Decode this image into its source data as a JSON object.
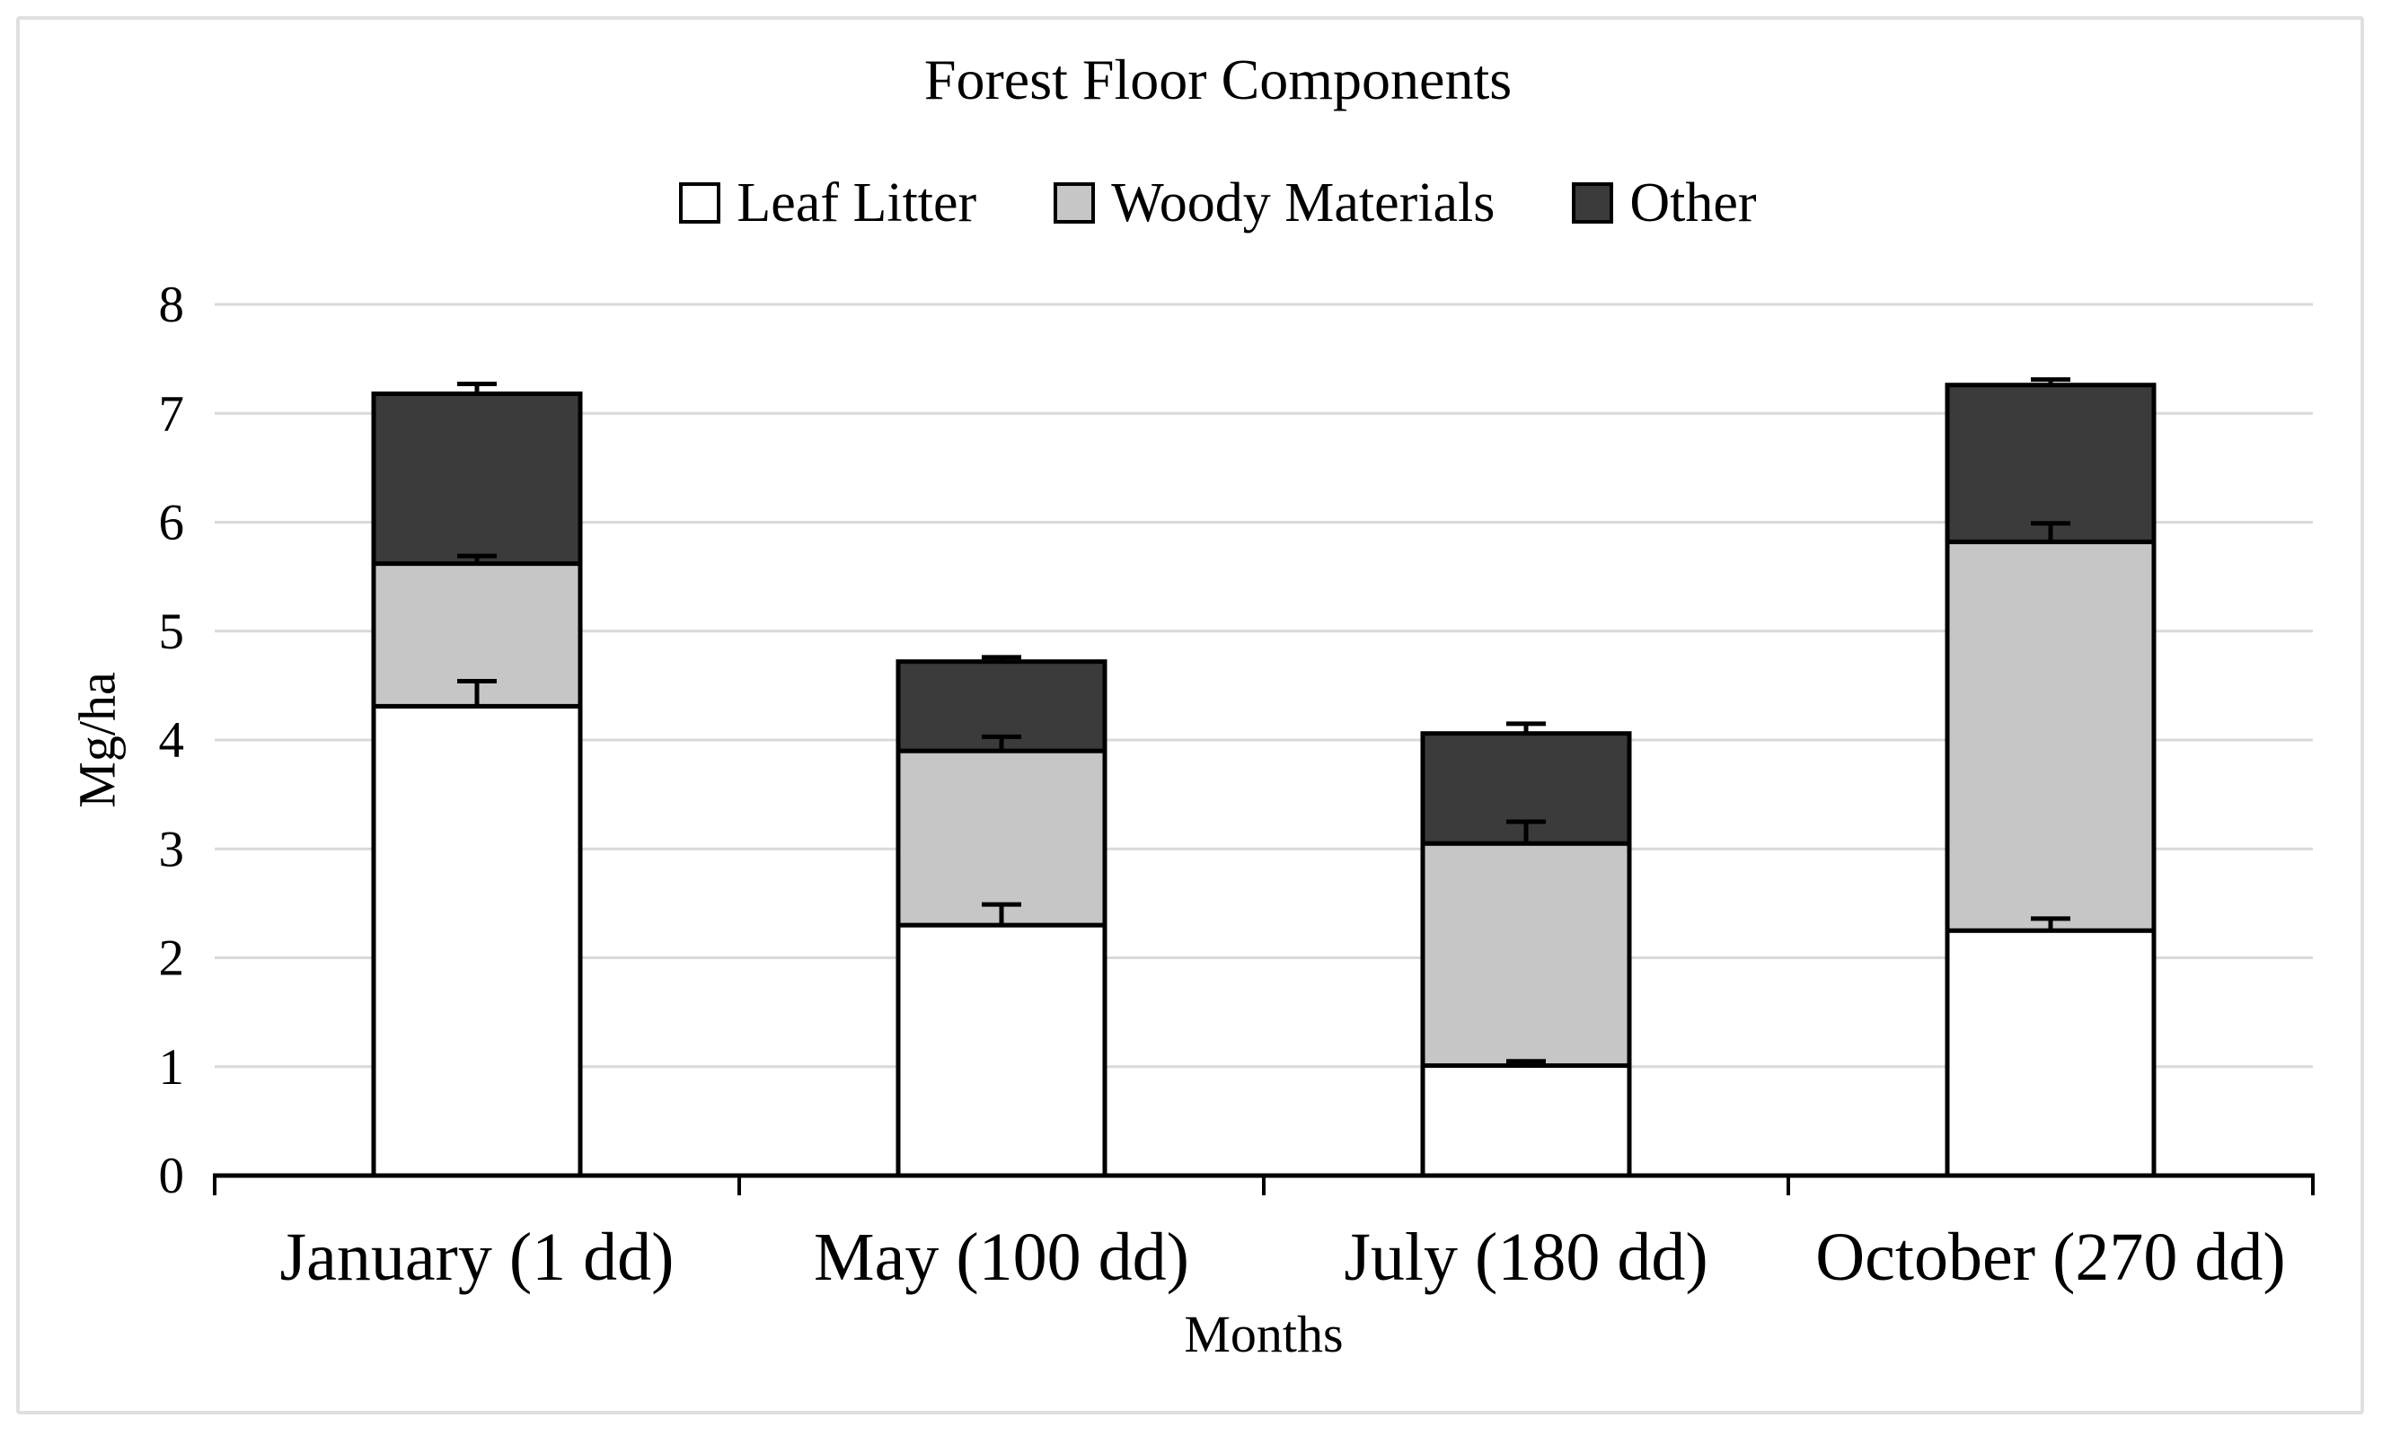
{
  "figure": {
    "background": "#ffffff",
    "frame_border_color": "#e0e0e0"
  },
  "chart_data": {
    "type": "bar",
    "stacked": true,
    "title": "Forest Floor Components",
    "xlabel": "Months",
    "ylabel": "Mg/ha",
    "ylim": [
      0,
      8
    ],
    "ytick_step": 1,
    "grid": true,
    "grid_color": "#d9d9d9",
    "axis_color": "#000000",
    "legend_position": "top",
    "categories": [
      "January (1 dd)",
      "May (100 dd)",
      "July (180 dd)",
      "October (270 dd)"
    ],
    "series": [
      {
        "name": "Leaf Litter",
        "color": "#ffffff",
        "values": [
          4.31,
          2.3,
          1.01,
          2.25
        ],
        "errors_up": [
          0.23,
          0.19,
          0.04,
          0.11
        ]
      },
      {
        "name": "Woody Materials",
        "color": "#c6c6c6",
        "values": [
          1.31,
          1.6,
          2.04,
          3.57
        ],
        "errors_up": [
          0.07,
          0.13,
          0.2,
          0.17
        ]
      },
      {
        "name": "Other",
        "color": "#3b3b3b",
        "values": [
          1.56,
          0.82,
          1.01,
          1.44
        ],
        "errors_up": [
          0.09,
          0.04,
          0.09,
          0.05
        ]
      }
    ]
  }
}
